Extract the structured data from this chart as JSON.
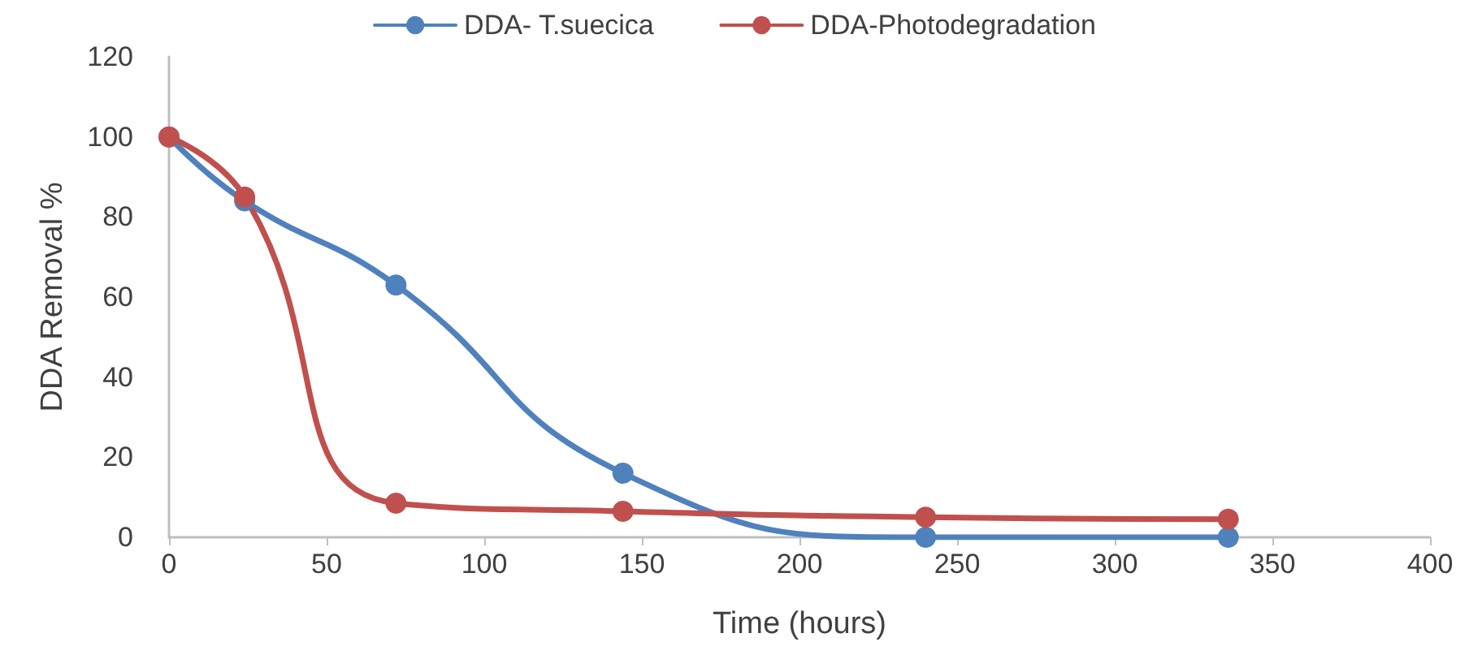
{
  "chart_data": {
    "type": "line",
    "xlabel": "Time (hours)",
    "ylabel": "DDA Removal %",
    "x": [
      0,
      24,
      72,
      144,
      240,
      336
    ],
    "series": [
      {
        "name": "DDA- T.suecica",
        "color": "#4f81bd",
        "values": [
          100,
          84,
          63,
          16,
          0,
          0
        ]
      },
      {
        "name": "DDA-Photodegradation",
        "color": "#c0504d",
        "values": [
          100,
          85,
          8.5,
          6.5,
          5,
          4.5
        ]
      }
    ],
    "xlim": [
      0,
      400
    ],
    "xticks": [
      0,
      50,
      100,
      150,
      200,
      250,
      300,
      350,
      400
    ],
    "ylim": [
      0,
      120
    ],
    "yticks": [
      0,
      20,
      40,
      60,
      80,
      100,
      120
    ],
    "grid": false,
    "legend": "top",
    "marker": "circle",
    "line_style": "solid"
  }
}
